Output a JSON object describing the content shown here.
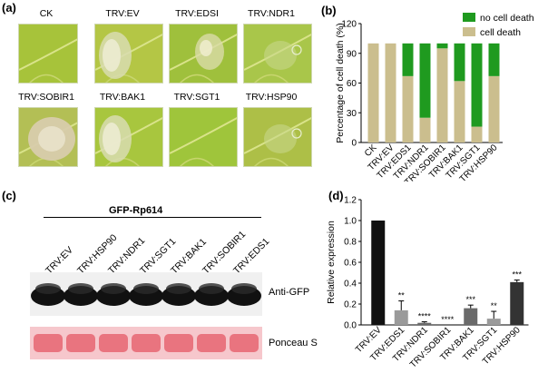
{
  "panels": {
    "a": "(a)",
    "b": "(b)",
    "c": "(c)",
    "d": "(d)"
  },
  "leaves": [
    {
      "label": "CK",
      "base": "#a7c33a",
      "lesion": "none"
    },
    {
      "label": "TRV:EV",
      "base": "#b4c645",
      "lesion": "edge"
    },
    {
      "label": "TRV:EDSI",
      "base": "#9fc03c",
      "lesion": "spots"
    },
    {
      "label": "TRV:NDR1",
      "base": "#a9c64a",
      "lesion": "faint"
    },
    {
      "label": "TRV:SOBIR1",
      "base": "#b3bf55",
      "lesion": "large"
    },
    {
      "label": "TRV:BAK1",
      "base": "#a8c63e",
      "lesion": "edge"
    },
    {
      "label": "TRV:SGT1",
      "base": "#9fc53b",
      "lesion": "none"
    },
    {
      "label": "TRV:HSP90",
      "base": "#adbf47",
      "lesion": "faint"
    }
  ],
  "colors": {
    "cell_death": "#cbbe8e",
    "no_cell_death": "#1f9a1f",
    "bar_black": "#111111",
    "bar_dark": "#333333",
    "bar_mid": "#6a6a6a",
    "bar_light": "#9a9a9a",
    "ponceau": "#e9747f"
  },
  "blot": {
    "header": "GFP-Rp614",
    "lanes": [
      "TRV:EV",
      "TRV:HSP90",
      "TRV:NDR1",
      "TRV:SGT1",
      "TRV:BAK1",
      "TRV:SOBIR1",
      "TRV:EDS1"
    ],
    "anti_label": "Anti-GFP",
    "ponceau_label": "Ponceau S"
  },
  "chart_data": [
    {
      "type": "bar",
      "stacked": true,
      "ylabel": "Percentage of cell death (%)",
      "ylim": [
        0,
        120
      ],
      "yticks": [
        0,
        30,
        60,
        90,
        120
      ],
      "categories": [
        "CK",
        "TRV:EV",
        "TRV:EDS1",
        "TRV:NDR1",
        "TRV:SOBIR1",
        "TRV:BAK1",
        "TRV:SGT1",
        "TRV:HSP90"
      ],
      "series": [
        {
          "name": "cell death",
          "values": [
            100,
            100,
            67,
            25,
            95,
            62,
            16,
            67
          ]
        },
        {
          "name": "no cell death",
          "values": [
            0,
            0,
            33,
            75,
            5,
            38,
            84,
            33
          ]
        }
      ],
      "legend": "top-right"
    },
    {
      "type": "bar",
      "ylabel": "Relative expression",
      "ylim": [
        0,
        1.2
      ],
      "yticks": [
        "0.0",
        "0.2",
        "0.4",
        "0.6",
        "0.8",
        "1.0",
        "1.2"
      ],
      "categories": [
        "TRV:EV",
        "TRV:EDS1",
        "TRV:NDR1",
        "TRV:SOBIR1",
        "TRV:BAK1",
        "TRV:SGT1",
        "TRV:HSP90"
      ],
      "values": [
        1.0,
        0.14,
        0.02,
        0.0,
        0.16,
        0.06,
        0.41
      ],
      "errors": [
        0,
        0.09,
        0.01,
        0,
        0.03,
        0.07,
        0.02
      ],
      "significance": [
        "",
        "**",
        "****",
        "****",
        "***",
        "**",
        "***"
      ],
      "bar_color_keys": [
        "bar_black",
        "bar_light",
        "bar_mid",
        "bar_mid",
        "bar_mid",
        "bar_light",
        "bar_dark"
      ]
    }
  ]
}
